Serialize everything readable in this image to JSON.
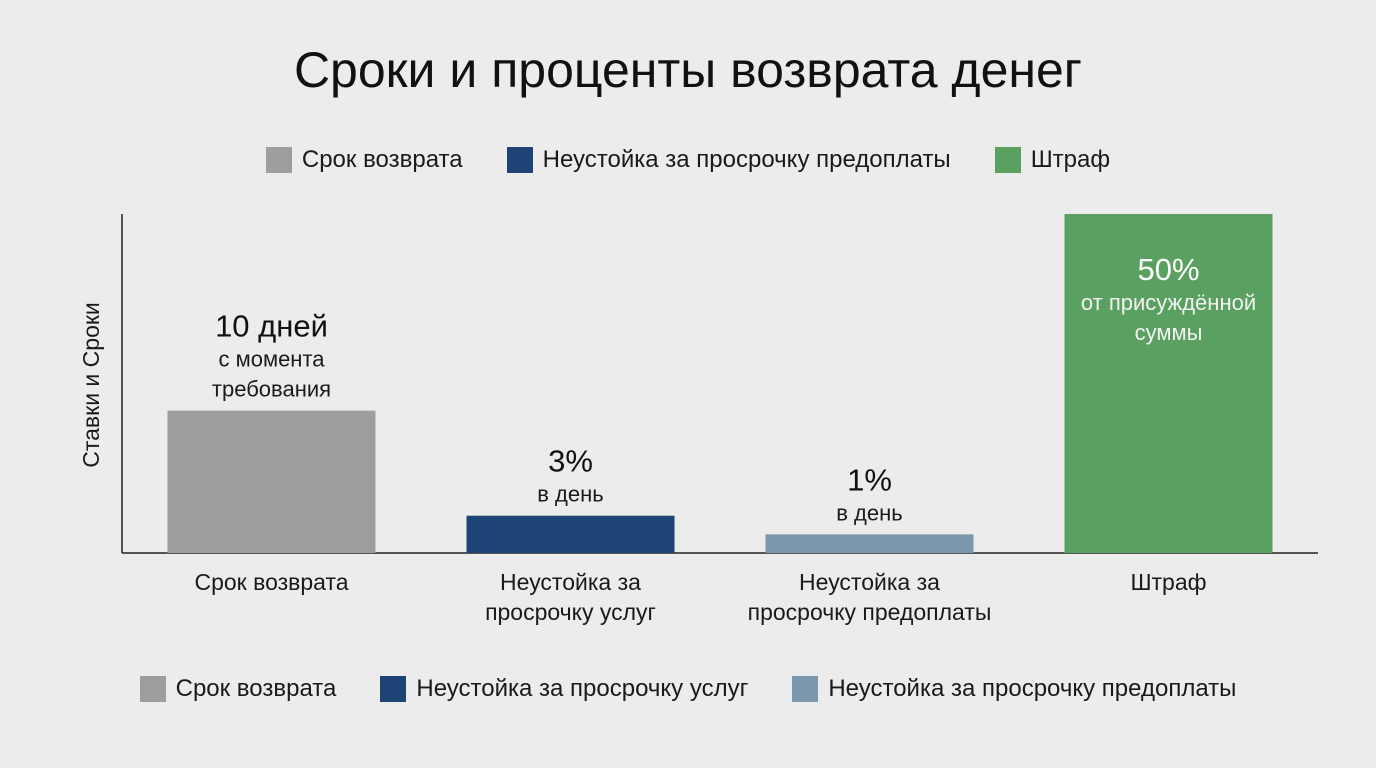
{
  "colors": {
    "gray": "#9e9e9e",
    "dark_blue": "#1d4474",
    "light_blue": "#7b97ad",
    "green": "#5aa061",
    "axis": "#222222"
  },
  "legend_top": [
    {
      "label": "Срок возврата",
      "color": "#9e9e9e"
    },
    {
      "label": "Неустойка за просрочку предоплаты",
      "color": "#1d4474"
    },
    {
      "label": "Штраф",
      "color": "#5aa061"
    }
  ],
  "legend_bottom": [
    {
      "label": "Срок возврата",
      "color": "#9e9e9e"
    },
    {
      "label": "Неустойка за просрочку услуг",
      "color": "#1d4474"
    },
    {
      "label": "Неустойка за просрочку предоплаты",
      "color": "#7b97ad"
    }
  ],
  "chart_data": {
    "type": "bar",
    "title": "Сроки и проценты возврата денег",
    "ylabel": "Ставки и Сроки",
    "xlabel": "",
    "categories": [
      [
        "Срок возврата"
      ],
      [
        "Неустойка за",
        "просрочку услуг"
      ],
      [
        "Неустойка за",
        "просрочку предоплаты"
      ],
      [
        "Штраф"
      ]
    ],
    "values": [
      42,
      11,
      5.5,
      100
    ],
    "ylim": [
      0,
      100
    ],
    "grid": false,
    "bar_colors": [
      "#9e9e9e",
      "#1d4474",
      "#7b97ad",
      "#5aa061"
    ],
    "labels": [
      {
        "value": "10 дней",
        "sub": [
          "с момента",
          "требования"
        ],
        "position": "above"
      },
      {
        "value": "3%",
        "sub": [
          "в день"
        ],
        "position": "above"
      },
      {
        "value": "1%",
        "sub": [
          "в день"
        ],
        "position": "above"
      },
      {
        "value": "50%",
        "sub": [
          "от присуждённой",
          "суммы"
        ],
        "position": "inside"
      }
    ]
  }
}
